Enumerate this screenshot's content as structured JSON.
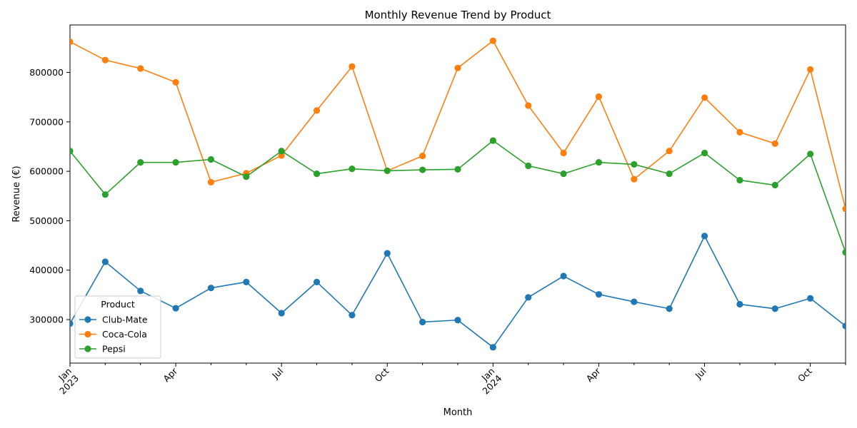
{
  "chart_data": {
    "type": "line",
    "title": "Monthly Revenue Trend by Product",
    "xlabel": "Month",
    "ylabel": "Revenue (€)",
    "x": [
      "2023-01",
      "2023-02",
      "2023-03",
      "2023-04",
      "2023-05",
      "2023-06",
      "2023-07",
      "2023-08",
      "2023-09",
      "2023-10",
      "2023-11",
      "2023-12",
      "2024-01",
      "2024-02",
      "2024-03",
      "2024-04",
      "2024-05",
      "2024-06",
      "2024-07",
      "2024-08",
      "2024-09",
      "2024-10",
      "2024-11"
    ],
    "x_ticks": [
      {
        "month": "2023-01",
        "label": "Jan",
        "sublabel": "2023"
      },
      {
        "month": "2023-04",
        "label": "Apr",
        "sublabel": ""
      },
      {
        "month": "2023-07",
        "label": "Jul",
        "sublabel": ""
      },
      {
        "month": "2023-10",
        "label": "Oct",
        "sublabel": ""
      },
      {
        "month": "2024-01",
        "label": "Jan",
        "sublabel": "2024"
      },
      {
        "month": "2024-04",
        "label": "Apr",
        "sublabel": ""
      },
      {
        "month": "2024-07",
        "label": "Jul",
        "sublabel": ""
      },
      {
        "month": "2024-10",
        "label": "Oct",
        "sublabel": ""
      }
    ],
    "y_ticks": [
      300000,
      400000,
      500000,
      600000,
      700000,
      800000
    ],
    "ylim": [
      212000,
      896000
    ],
    "grid": false,
    "legend": {
      "title": "Product",
      "placement": "lower-left"
    },
    "series": [
      {
        "name": "Club-Mate",
        "color": "#1f77b4",
        "values": [
          292000,
          417000,
          358000,
          323000,
          364000,
          376000,
          313000,
          376000,
          309000,
          434000,
          295000,
          299000,
          244000,
          345000,
          388000,
          351000,
          336000,
          322000,
          469000,
          331000,
          322000,
          343000,
          287000
        ]
      },
      {
        "name": "Coca-Cola",
        "color": "#ff7f0e",
        "values": [
          862000,
          825000,
          808000,
          780000,
          578000,
          596000,
          632000,
          723000,
          812000,
          601000,
          631000,
          809000,
          864000,
          733000,
          637000,
          751000,
          584000,
          641000,
          749000,
          679000,
          656000,
          806000,
          524000
        ]
      },
      {
        "name": "Pepsi",
        "color": "#2ca02c",
        "values": [
          641000,
          553000,
          618000,
          618000,
          624000,
          589000,
          641000,
          595000,
          605000,
          601000,
          603000,
          604000,
          662000,
          611000,
          595000,
          618000,
          614000,
          595000,
          637000,
          582000,
          572000,
          635000,
          436000
        ]
      }
    ]
  }
}
